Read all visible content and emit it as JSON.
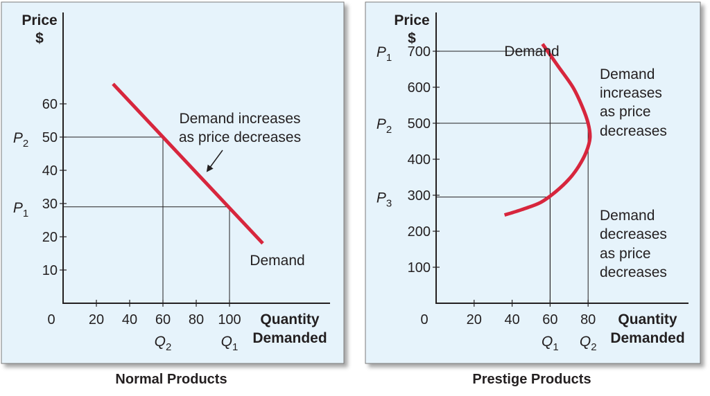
{
  "chart_data": [
    {
      "type": "line",
      "caption": "Normal Products",
      "y_axis_label": [
        "Price",
        "$"
      ],
      "x_axis_label": [
        "Quantity",
        "Demanded"
      ],
      "origin_label": "0",
      "x_ticks": [
        "20",
        "40",
        "60",
        "80",
        "100"
      ],
      "y_ticks": [
        "10",
        "20",
        "30",
        "40",
        "50",
        "60"
      ],
      "xlim": [
        0,
        160
      ],
      "ylim": [
        0,
        100
      ],
      "series": [
        {
          "name": "Demand",
          "points": [
            [
              30,
              66
            ],
            [
              120,
              18
            ]
          ]
        }
      ],
      "series_label": "Demand",
      "reference_points": [
        {
          "price_label": "P",
          "price_sub": "2",
          "qty_label": "Q",
          "qty_sub": "2",
          "x": 60,
          "y": 50
        },
        {
          "price_label": "P",
          "price_sub": "1",
          "qty_label": "Q",
          "qty_sub": "1",
          "x": 100,
          "y": 29
        }
      ],
      "annotation": [
        "Demand increases",
        "as price decreases"
      ],
      "color": "#d7263d"
    },
    {
      "type": "line",
      "caption": "Prestige Products",
      "y_axis_label": [
        "Price",
        "$"
      ],
      "x_axis_label": [
        "Quantity",
        "Demanded"
      ],
      "origin_label": "0",
      "x_ticks": [
        "20",
        "40",
        "60",
        "80"
      ],
      "y_ticks": [
        "100",
        "200",
        "300",
        "400",
        "500",
        "600",
        "700"
      ],
      "xlim": [
        0,
        133
      ],
      "ylim": [
        0,
        800
      ],
      "series": [
        {
          "name": "Demand",
          "points": [
            [
              36,
              245
            ],
            [
              45,
              260
            ],
            [
              55,
              280
            ],
            [
              63,
              310
            ],
            [
              70,
              345
            ],
            [
              75,
              380
            ],
            [
              79,
              420
            ],
            [
              81,
              460
            ],
            [
              80,
              500
            ],
            [
              77,
              545
            ],
            [
              72,
              600
            ],
            [
              64,
              660
            ],
            [
              56,
              720
            ]
          ]
        }
      ],
      "series_label": "Demand",
      "reference_points": [
        {
          "price_label": "P",
          "price_sub": "1",
          "x": 60,
          "y": 700
        },
        {
          "price_label": "P",
          "price_sub": "2",
          "x": 80,
          "y": 500
        },
        {
          "price_label": "P",
          "price_sub": "3",
          "x": 60,
          "y": 295
        }
      ],
      "qty_labels": [
        {
          "label": "Q",
          "sub": "1",
          "x": 60
        },
        {
          "label": "Q",
          "sub": "2",
          "x": 80
        }
      ],
      "annotation_upper": [
        "Demand",
        "increases",
        "as price",
        "decreases"
      ],
      "annotation_lower": [
        "Demand",
        "decreases",
        "as price",
        "decreases"
      ],
      "color": "#d7263d"
    }
  ]
}
